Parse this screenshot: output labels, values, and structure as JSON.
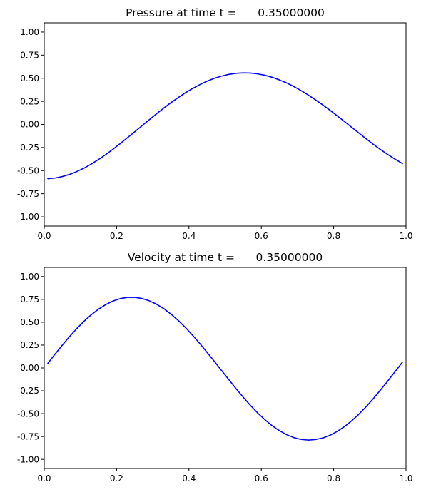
{
  "chart_data": [
    {
      "type": "line",
      "title": "Pressure at time t =      0.35000000",
      "xlabel": "",
      "ylabel": "",
      "xlim": [
        0,
        1
      ],
      "ylim": [
        -1.1,
        1.1
      ],
      "grid": false,
      "x_ticks": [
        0,
        0.2,
        0.4,
        0.6,
        0.8,
        1.0
      ],
      "x_tick_labels": [
        "0.0",
        "0.2",
        "0.4",
        "0.6",
        "0.8",
        "1.0"
      ],
      "y_ticks": [
        -1.0,
        -0.75,
        -0.5,
        -0.25,
        0.0,
        0.25,
        0.5,
        0.75,
        1.0
      ],
      "y_tick_labels": [
        "-1.00",
        "-0.75",
        "-0.50",
        "-0.25",
        "0.00",
        "0.25",
        "0.50",
        "0.75",
        "1.00"
      ],
      "series": [
        {
          "color": "#0000ff",
          "x": [
            0.01,
            0.03,
            0.05,
            0.07,
            0.09,
            0.11,
            0.13,
            0.15,
            0.17,
            0.19,
            0.21,
            0.23,
            0.25,
            0.27,
            0.29,
            0.31,
            0.33,
            0.35,
            0.37,
            0.39,
            0.41,
            0.43,
            0.45,
            0.47,
            0.49,
            0.51,
            0.53,
            0.55,
            0.57,
            0.59,
            0.61,
            0.63,
            0.65,
            0.67,
            0.69,
            0.71,
            0.73,
            0.75,
            0.77,
            0.79,
            0.81,
            0.83,
            0.85,
            0.87,
            0.89,
            0.91,
            0.93,
            0.95,
            0.97,
            0.99
          ],
          "y": [
            -0.587,
            -0.58,
            -0.564,
            -0.541,
            -0.51,
            -0.473,
            -0.429,
            -0.38,
            -0.326,
            -0.268,
            -0.207,
            -0.144,
            -0.08,
            -0.015,
            0.05,
            0.114,
            0.176,
            0.235,
            0.29,
            0.342,
            0.389,
            0.431,
            0.468,
            0.499,
            0.523,
            0.542,
            0.553,
            0.558,
            0.556,
            0.547,
            0.532,
            0.51,
            0.482,
            0.449,
            0.41,
            0.366,
            0.318,
            0.266,
            0.211,
            0.153,
            0.093,
            0.031,
            -0.032,
            -0.094,
            -0.156,
            -0.216,
            -0.273,
            -0.327,
            -0.377,
            -0.423
          ]
        }
      ]
    },
    {
      "type": "line",
      "title": "Velocity at time t =      0.35000000",
      "xlabel": "",
      "ylabel": "",
      "xlim": [
        0,
        1
      ],
      "ylim": [
        -1.1,
        1.1
      ],
      "grid": false,
      "x_ticks": [
        0,
        0.2,
        0.4,
        0.6,
        0.8,
        1.0
      ],
      "x_tick_labels": [
        "0.0",
        "0.2",
        "0.4",
        "0.6",
        "0.8",
        "1.0"
      ],
      "y_ticks": [
        -1.0,
        -0.75,
        -0.5,
        -0.25,
        0.0,
        0.25,
        0.5,
        0.75,
        1.0
      ],
      "y_tick_labels": [
        "-1.00",
        "-0.75",
        "-0.50",
        "-0.25",
        "0.00",
        "0.25",
        "0.50",
        "0.75",
        "1.00"
      ],
      "series": [
        {
          "color": "#0000ff",
          "x": [
            0.01,
            0.03,
            0.05,
            0.07,
            0.09,
            0.11,
            0.13,
            0.15,
            0.17,
            0.19,
            0.21,
            0.23,
            0.25,
            0.27,
            0.29,
            0.31,
            0.33,
            0.35,
            0.37,
            0.39,
            0.41,
            0.43,
            0.45,
            0.47,
            0.49,
            0.51,
            0.53,
            0.55,
            0.57,
            0.59,
            0.61,
            0.63,
            0.65,
            0.67,
            0.69,
            0.71,
            0.73,
            0.75,
            0.77,
            0.79,
            0.81,
            0.83,
            0.85,
            0.87,
            0.89,
            0.91,
            0.93,
            0.95,
            0.97,
            0.99
          ],
          "y": [
            0.051,
            0.152,
            0.25,
            0.344,
            0.431,
            0.511,
            0.582,
            0.643,
            0.693,
            0.732,
            0.758,
            0.772,
            0.772,
            0.76,
            0.735,
            0.698,
            0.65,
            0.59,
            0.521,
            0.443,
            0.358,
            0.267,
            0.171,
            0.073,
            -0.027,
            -0.127,
            -0.225,
            -0.32,
            -0.41,
            -0.493,
            -0.567,
            -0.632,
            -0.686,
            -0.73,
            -0.762,
            -0.782,
            -0.789,
            -0.783,
            -0.766,
            -0.736,
            -0.694,
            -0.641,
            -0.578,
            -0.505,
            -0.423,
            -0.334,
            -0.239,
            -0.14,
            -0.039,
            0.062
          ]
        }
      ]
    }
  ]
}
